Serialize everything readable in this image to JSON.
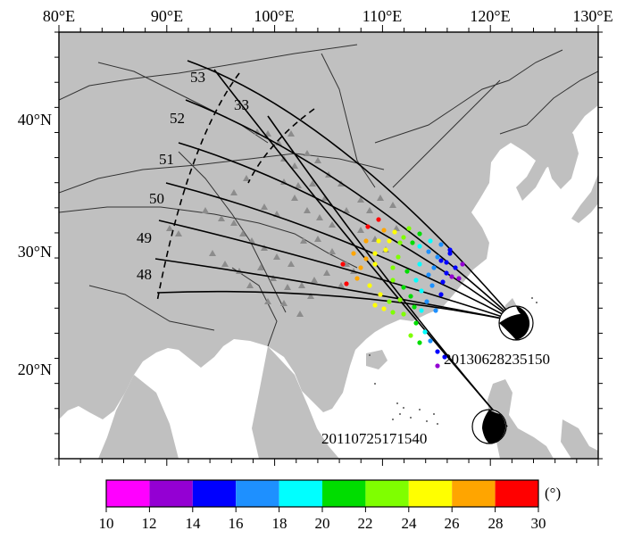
{
  "map": {
    "lon_ticks": [
      "80°E",
      "90°E",
      "100°E",
      "110°E",
      "120°E",
      "130°E"
    ],
    "lat_ticks": [
      "20°N",
      "30°N",
      "40°N"
    ],
    "lon_range": [
      80,
      130
    ],
    "lat_range": [
      13,
      47
    ],
    "profile_labels": [
      "53",
      "33",
      "52",
      "51",
      "50",
      "49",
      "48"
    ],
    "events": [
      {
        "id": "20130628235150",
        "lon": 121.0,
        "lat": 23.9
      },
      {
        "id": "20110725171540",
        "lon": 119.7,
        "lat": 15.3
      }
    ]
  },
  "colorbar": {
    "ticks": [
      "10",
      "12",
      "14",
      "16",
      "18",
      "20",
      "22",
      "24",
      "26",
      "28",
      "30"
    ],
    "unit": "(°)",
    "colors": [
      "#ff00ff",
      "#9400d3",
      "#0000ff",
      "#1e90ff",
      "#00ffff",
      "#00dd00",
      "#7fff00",
      "#ffff00",
      "#ffa500",
      "#ff0000"
    ]
  },
  "colors": {
    "land": "#c0c0c0",
    "sea": "#ffffff",
    "triangle": "#8c8c8c"
  }
}
